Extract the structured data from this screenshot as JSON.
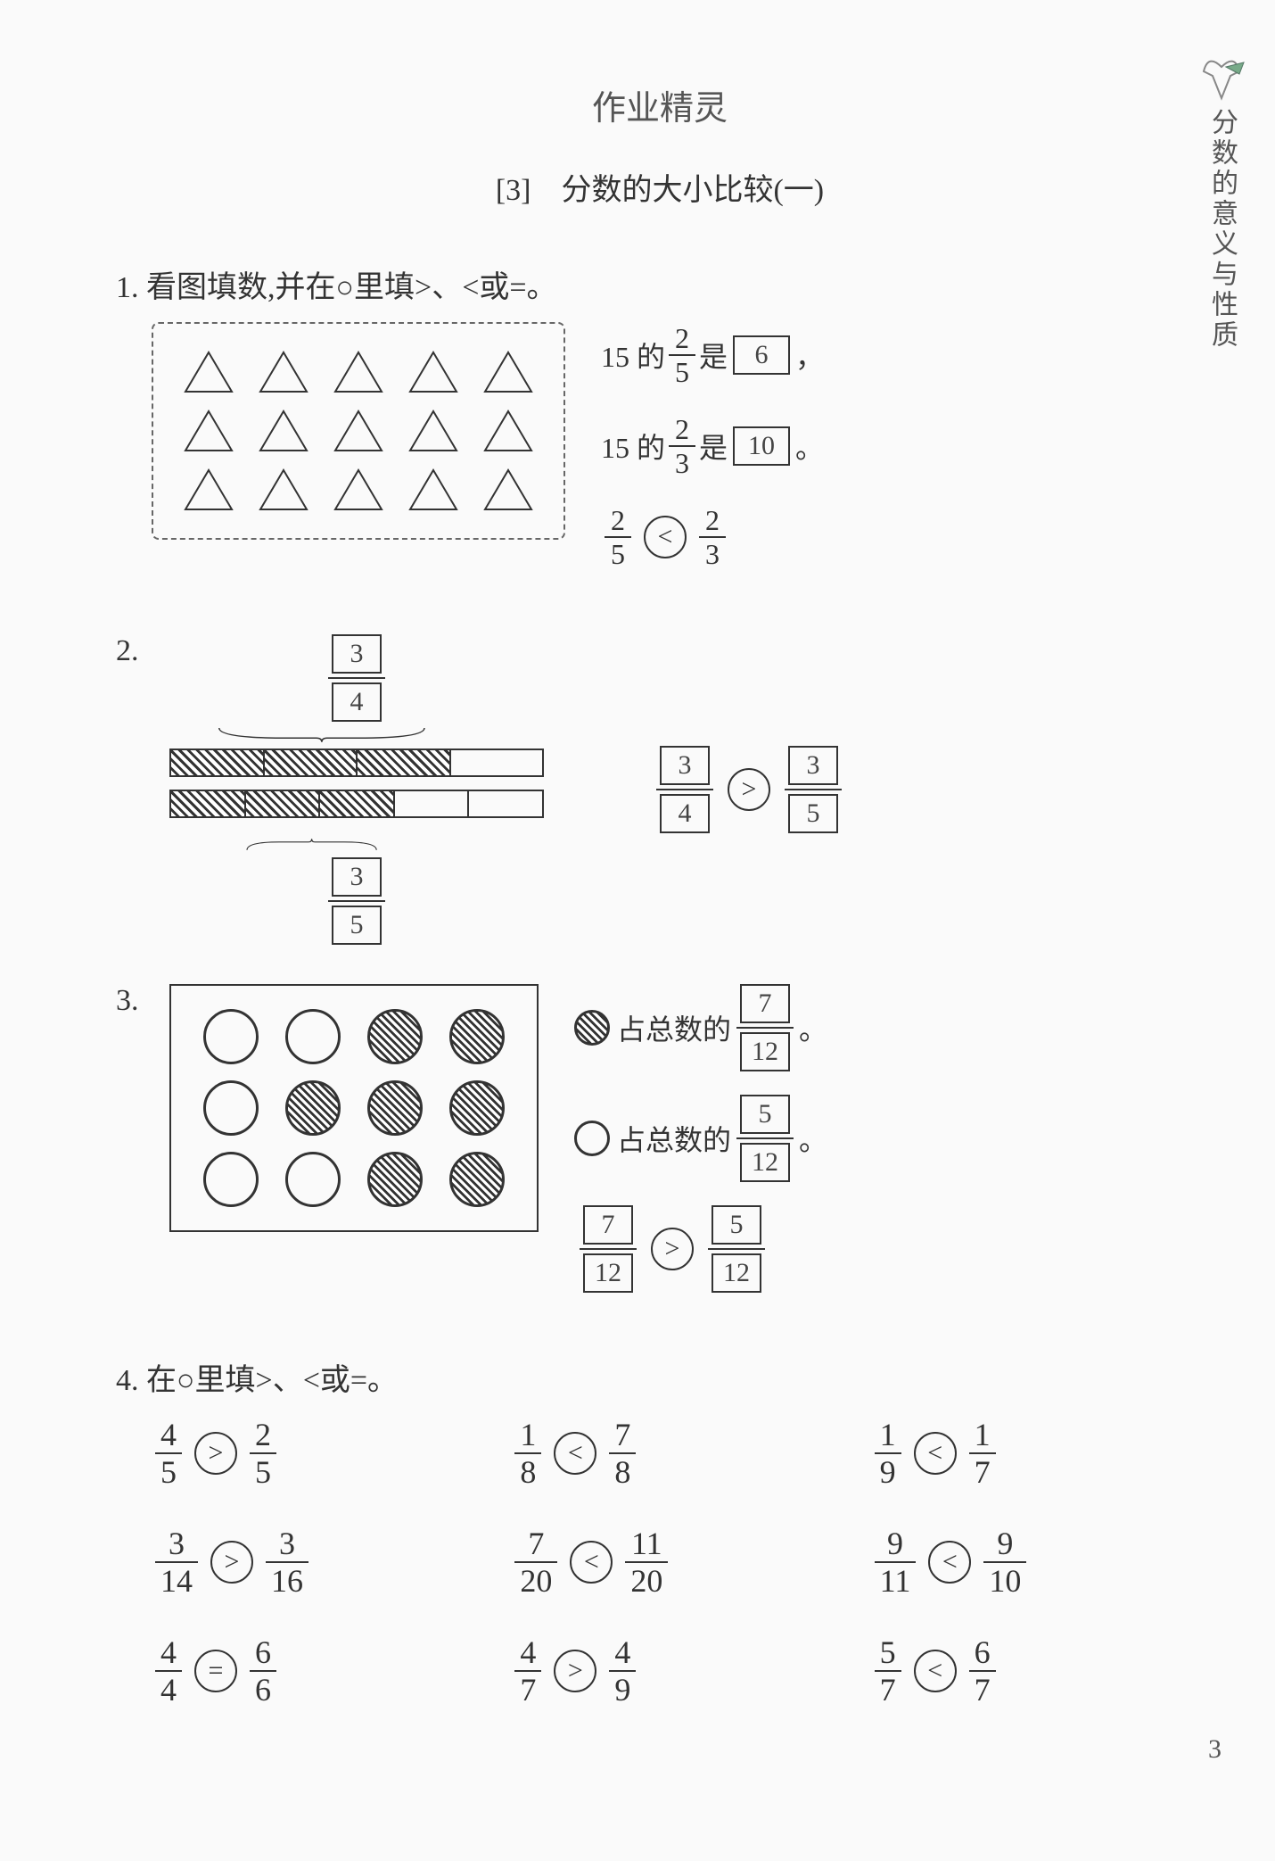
{
  "watermark": "作业精灵",
  "chapter": "[3]　分数的大小比较(一)",
  "sidebar": "分数的意义与性质",
  "pageNumber": "3",
  "q1": {
    "prompt": "1. 看图填数,并在○里填>、<或=。",
    "line1_pre": "15 的",
    "line1_frac_n": "2",
    "line1_frac_d": "5",
    "line1_mid": "是",
    "line1_ans": "6",
    "line1_post": "，",
    "line2_pre": "15 的",
    "line2_frac_n": "2",
    "line2_frac_d": "3",
    "line2_mid": "是",
    "line2_ans": "10",
    "line2_post": "。",
    "comp_left_n": "2",
    "comp_left_d": "5",
    "comp_op": "<",
    "comp_right_n": "2",
    "comp_right_d": "3"
  },
  "q2": {
    "num": "2.",
    "topFrac_n": "3",
    "topFrac_d": "4",
    "botFrac_n": "3",
    "botFrac_d": "5",
    "comp_left_n": "3",
    "comp_left_d": "4",
    "comp_op": ">",
    "comp_right_n": "3",
    "comp_right_d": "5"
  },
  "q3": {
    "num": "3.",
    "line1_text": "占总数的",
    "line1_n": "7",
    "line1_d": "12",
    "line2_text": "占总数的",
    "line2_n": "5",
    "line2_d": "12",
    "comp_left_n": "7",
    "comp_left_d": "12",
    "comp_op": ">",
    "comp_right_n": "5",
    "comp_right_d": "12"
  },
  "q4": {
    "prompt": "4. 在○里填>、<或=。",
    "items": [
      {
        "ln": "4",
        "ld": "5",
        "op": ">",
        "rn": "2",
        "rd": "5"
      },
      {
        "ln": "1",
        "ld": "8",
        "op": "<",
        "rn": "7",
        "rd": "8"
      },
      {
        "ln": "1",
        "ld": "9",
        "op": "<",
        "rn": "1",
        "rd": "7"
      },
      {
        "ln": "3",
        "ld": "14",
        "op": ">",
        "rn": "3",
        "rd": "16"
      },
      {
        "ln": "7",
        "ld": "20",
        "op": "<",
        "rn": "11",
        "rd": "20"
      },
      {
        "ln": "9",
        "ld": "11",
        "op": "<",
        "rn": "9",
        "rd": "10"
      },
      {
        "ln": "4",
        "ld": "4",
        "op": "=",
        "rn": "6",
        "rd": "6"
      },
      {
        "ln": "4",
        "ld": "7",
        "op": ">",
        "rn": "4",
        "rd": "9"
      },
      {
        "ln": "5",
        "ld": "7",
        "op": "<",
        "rn": "6",
        "rd": "7"
      }
    ]
  }
}
